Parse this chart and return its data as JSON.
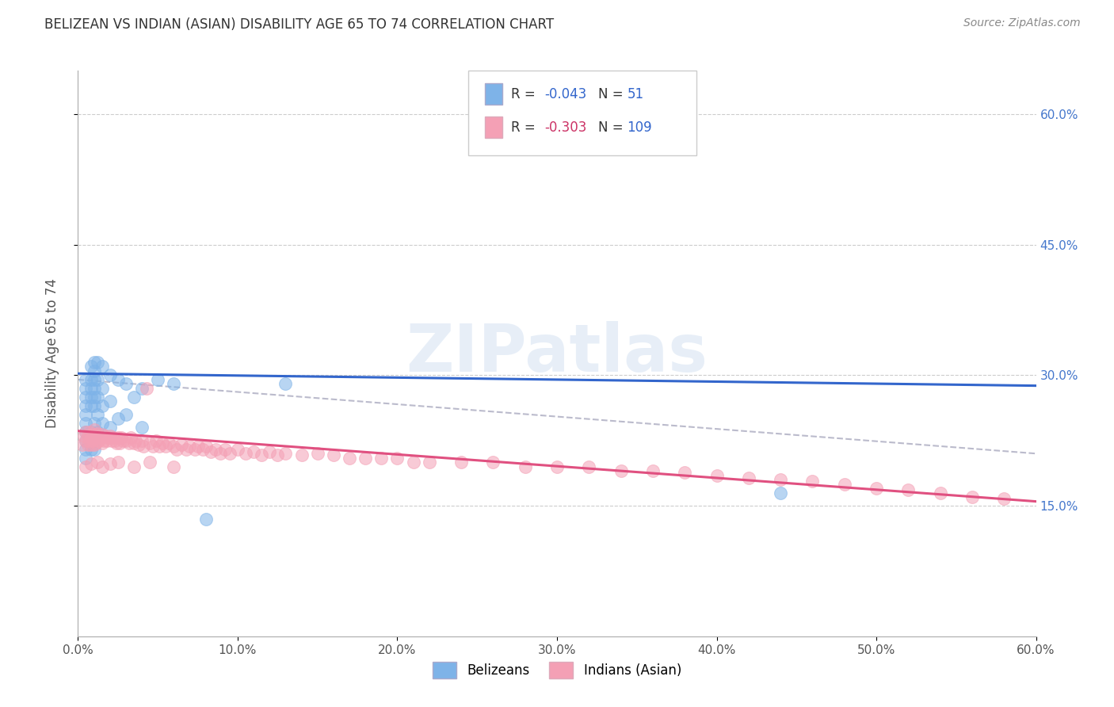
{
  "title": "BELIZEAN VS INDIAN (ASIAN) DISABILITY AGE 65 TO 74 CORRELATION CHART",
  "source": "Source: ZipAtlas.com",
  "ylabel": "Disability Age 65 to 74",
  "xlim": [
    0.0,
    0.6
  ],
  "ylim": [
    0.0,
    0.65
  ],
  "belizean_color": "#7eb3e8",
  "indian_color": "#f4a0b5",
  "belizean_R": -0.043,
  "belizean_N": 51,
  "indian_R": -0.303,
  "indian_N": 109,
  "belizean_line_color": "#3366cc",
  "indian_line_color": "#e05080",
  "trend_line_color": "#bbbbcc",
  "background_color": "#ffffff",
  "watermark": "ZIPatlas",
  "belizean_x": [
    0.005,
    0.005,
    0.005,
    0.005,
    0.005,
    0.005,
    0.005,
    0.005,
    0.005,
    0.005,
    0.008,
    0.008,
    0.008,
    0.008,
    0.008,
    0.008,
    0.008,
    0.008,
    0.01,
    0.01,
    0.01,
    0.01,
    0.01,
    0.01,
    0.01,
    0.01,
    0.01,
    0.012,
    0.012,
    0.012,
    0.012,
    0.012,
    0.015,
    0.015,
    0.015,
    0.015,
    0.02,
    0.02,
    0.02,
    0.025,
    0.025,
    0.03,
    0.03,
    0.035,
    0.04,
    0.04,
    0.05,
    0.06,
    0.08,
    0.13,
    0.44
  ],
  "belizean_y": [
    0.205,
    0.215,
    0.225,
    0.235,
    0.245,
    0.255,
    0.265,
    0.275,
    0.285,
    0.295,
    0.215,
    0.225,
    0.235,
    0.265,
    0.275,
    0.285,
    0.295,
    0.31,
    0.215,
    0.225,
    0.245,
    0.265,
    0.275,
    0.285,
    0.295,
    0.305,
    0.315,
    0.235,
    0.255,
    0.275,
    0.295,
    0.315,
    0.245,
    0.265,
    0.285,
    0.31,
    0.24,
    0.27,
    0.3,
    0.25,
    0.295,
    0.255,
    0.29,
    0.275,
    0.24,
    0.285,
    0.295,
    0.29,
    0.135,
    0.29,
    0.165
  ],
  "indian_x": [
    0.003,
    0.004,
    0.005,
    0.005,
    0.006,
    0.006,
    0.007,
    0.007,
    0.008,
    0.008,
    0.009,
    0.009,
    0.01,
    0.01,
    0.01,
    0.011,
    0.011,
    0.012,
    0.012,
    0.013,
    0.014,
    0.015,
    0.015,
    0.016,
    0.017,
    0.018,
    0.019,
    0.02,
    0.021,
    0.022,
    0.023,
    0.024,
    0.025,
    0.026,
    0.027,
    0.028,
    0.03,
    0.032,
    0.033,
    0.035,
    0.036,
    0.038,
    0.04,
    0.041,
    0.043,
    0.045,
    0.047,
    0.049,
    0.051,
    0.053,
    0.055,
    0.057,
    0.06,
    0.062,
    0.065,
    0.068,
    0.07,
    0.073,
    0.075,
    0.078,
    0.08,
    0.083,
    0.086,
    0.089,
    0.092,
    0.095,
    0.1,
    0.105,
    0.11,
    0.115,
    0.12,
    0.125,
    0.13,
    0.14,
    0.15,
    0.16,
    0.17,
    0.18,
    0.19,
    0.2,
    0.21,
    0.22,
    0.24,
    0.26,
    0.28,
    0.3,
    0.32,
    0.34,
    0.36,
    0.38,
    0.4,
    0.42,
    0.44,
    0.46,
    0.48,
    0.5,
    0.52,
    0.54,
    0.56,
    0.58,
    0.005,
    0.008,
    0.012,
    0.015,
    0.02,
    0.025,
    0.035,
    0.045,
    0.06
  ],
  "indian_y": [
    0.22,
    0.23,
    0.225,
    0.235,
    0.22,
    0.23,
    0.225,
    0.235,
    0.22,
    0.228,
    0.225,
    0.232,
    0.22,
    0.228,
    0.238,
    0.222,
    0.232,
    0.225,
    0.233,
    0.225,
    0.228,
    0.222,
    0.232,
    0.225,
    0.23,
    0.225,
    0.228,
    0.23,
    0.225,
    0.228,
    0.225,
    0.222,
    0.228,
    0.222,
    0.228,
    0.225,
    0.225,
    0.222,
    0.228,
    0.222,
    0.225,
    0.22,
    0.225,
    0.218,
    0.285,
    0.222,
    0.218,
    0.225,
    0.218,
    0.222,
    0.218,
    0.222,
    0.218,
    0.215,
    0.22,
    0.215,
    0.218,
    0.215,
    0.218,
    0.215,
    0.218,
    0.212,
    0.215,
    0.21,
    0.215,
    0.21,
    0.215,
    0.21,
    0.212,
    0.208,
    0.212,
    0.208,
    0.21,
    0.208,
    0.21,
    0.208,
    0.205,
    0.205,
    0.205,
    0.205,
    0.2,
    0.2,
    0.2,
    0.2,
    0.195,
    0.195,
    0.195,
    0.19,
    0.19,
    0.188,
    0.185,
    0.182,
    0.18,
    0.178,
    0.175,
    0.17,
    0.168,
    0.165,
    0.16,
    0.158,
    0.195,
    0.198,
    0.2,
    0.195,
    0.198,
    0.2,
    0.195,
    0.2,
    0.195
  ]
}
